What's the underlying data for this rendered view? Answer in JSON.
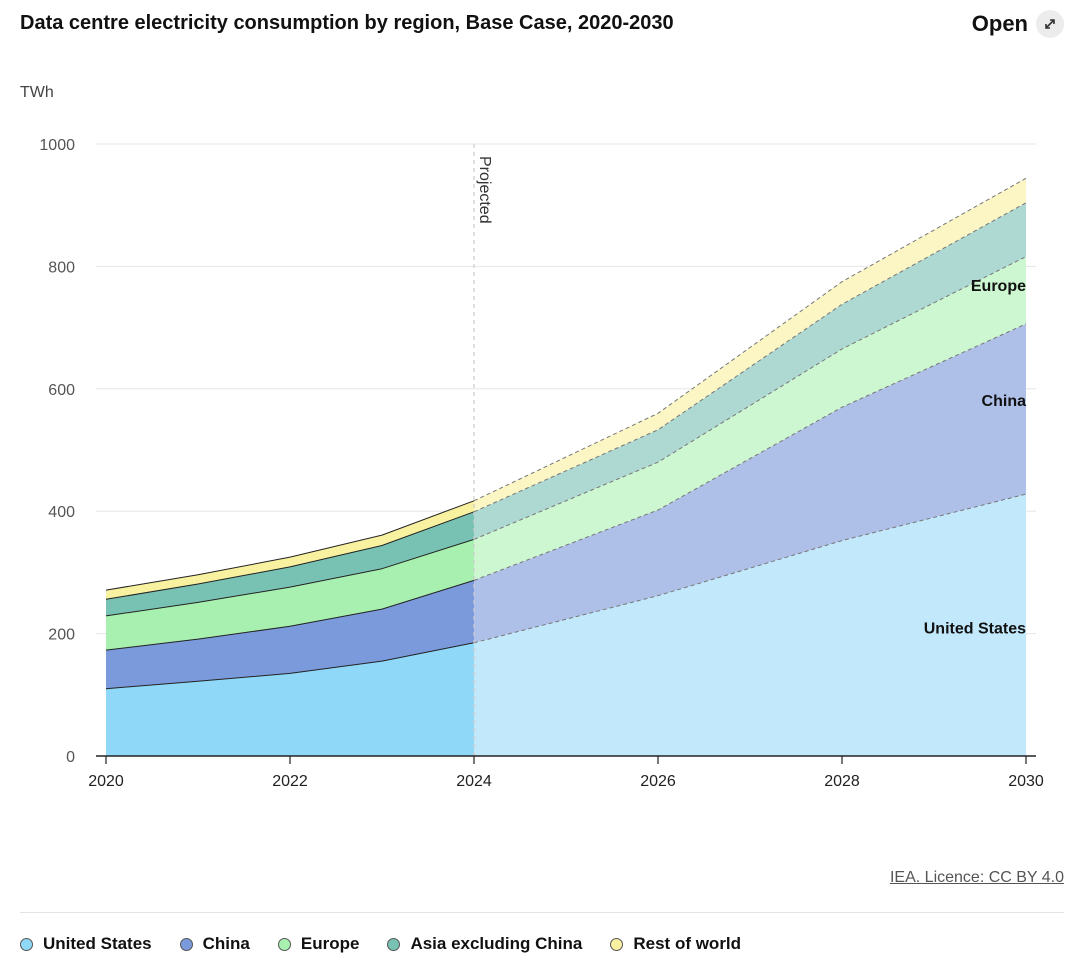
{
  "header": {
    "title": "Data centre electricity consumption by region, Base Case, 2020-2030",
    "open_label": "Open"
  },
  "chart_data": {
    "type": "area",
    "stacked": true,
    "title": "Data centre electricity consumption by region, Base Case, 2020-2030",
    "ylabel": "TWh",
    "xlabel": "",
    "ylim": [
      0,
      1000
    ],
    "xlim": [
      2020,
      2030
    ],
    "yticks": [
      0,
      200,
      400,
      600,
      800,
      1000
    ],
    "xticks": [
      2020,
      2022,
      2024,
      2026,
      2028,
      2030
    ],
    "grid": true,
    "projection_start": 2024,
    "projection_label": "Projected",
    "legend_position": "bottom",
    "series": [
      {
        "name": "United States",
        "color": "#8fd8f7",
        "projected_color": "#c2e9fb",
        "x": [
          2020,
          2021,
          2022,
          2023,
          2024,
          2026,
          2028,
          2030
        ],
        "values": [
          110,
          122,
          135,
          155,
          185,
          262,
          352,
          428
        ]
      },
      {
        "name": "China",
        "color": "#7a9adb",
        "projected_color": "#aebfe8",
        "x": [
          2020,
          2021,
          2022,
          2023,
          2024,
          2026,
          2028,
          2030
        ],
        "values": [
          63,
          69,
          77,
          85,
          102,
          140,
          218,
          278
        ]
      },
      {
        "name": "Europe",
        "color": "#a8f0b0",
        "projected_color": "#ccf7d0",
        "x": [
          2020,
          2021,
          2022,
          2023,
          2024,
          2026,
          2028,
          2030
        ],
        "values": [
          56,
          60,
          64,
          66,
          67,
          78,
          95,
          110
        ]
      },
      {
        "name": "Asia excluding China",
        "color": "#78c2b4",
        "projected_color": "#aed8d2",
        "x": [
          2020,
          2021,
          2022,
          2023,
          2024,
          2026,
          2028,
          2030
        ],
        "values": [
          27,
          30,
          33,
          38,
          45,
          53,
          73,
          88
        ]
      },
      {
        "name": "Rest of world",
        "color": "#f7f1a0",
        "projected_color": "#fbf6c4",
        "x": [
          2020,
          2021,
          2022,
          2023,
          2024,
          2026,
          2028,
          2030
        ],
        "values": [
          15,
          15,
          16,
          17,
          18,
          27,
          37,
          40
        ]
      }
    ],
    "annotations": [
      {
        "text": "Europe",
        "x": 2030,
        "y": 760
      },
      {
        "text": "China",
        "x": 2030,
        "y": 572
      },
      {
        "text": "United States",
        "x": 2030,
        "y": 200
      }
    ]
  },
  "footer": {
    "source": "IEA. Licence: CC BY 4.0"
  }
}
